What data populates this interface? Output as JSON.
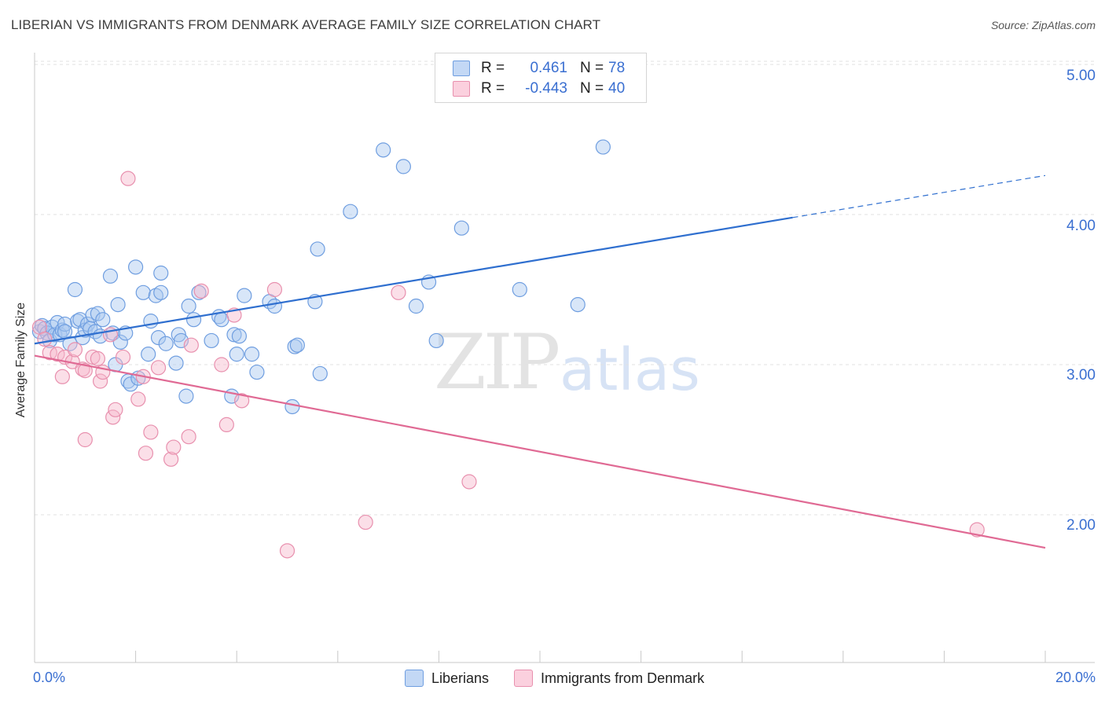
{
  "title": "LIBERIAN VS IMMIGRANTS FROM DENMARK AVERAGE FAMILY SIZE CORRELATION CHART",
  "source": "Source: ZipAtlas.com",
  "watermark": {
    "zip": "ZIP",
    "atlas": "atlas"
  },
  "legend": {
    "rows": [
      {
        "r_label": "R =",
        "r_value": "0.461",
        "n_label": "N =",
        "n_value": "78",
        "color": "#a9c8f0"
      },
      {
        "r_label": "R =",
        "r_value": "-0.443",
        "n_label": "N =",
        "n_value": "40",
        "color": "#f6b8cc"
      }
    ]
  },
  "bottom_legend": {
    "series1": "Liberians",
    "series2": "Immigrants from Denmark"
  },
  "x_axis": {
    "min_label": "0.0%",
    "max_label": "20.0%"
  },
  "y_axis": {
    "label": "Average Family Size",
    "ticks": [
      "5.00",
      "4.00",
      "3.00",
      "2.00"
    ]
  },
  "colors": {
    "blue_fill": "#a9c8f0",
    "blue_stroke": "#6f9ee0",
    "blue_line": "#2f6fcf",
    "pink_fill": "#f6b8cc",
    "pink_stroke": "#e890ae",
    "pink_line": "#e06a94",
    "grid": "#e2e2e2"
  },
  "chart_data": {
    "type": "scatter",
    "xlabel": "",
    "ylabel": "Average Family Size",
    "xlim": [
      0,
      20
    ],
    "ylim": [
      1.1,
      5.3
    ],
    "y_ticks": [
      2.0,
      3.0,
      4.0,
      5.0
    ],
    "grid": true,
    "series": [
      {
        "name": "Liberians",
        "trend": {
          "x": [
            0,
            15
          ],
          "y": [
            3.14,
            3.98
          ],
          "dashed_to": [
            20,
            4.26
          ]
        },
        "points": [
          [
            0.1,
            3.22
          ],
          [
            0.15,
            3.26
          ],
          [
            0.2,
            3.24
          ],
          [
            0.25,
            3.21
          ],
          [
            0.3,
            3.16
          ],
          [
            0.35,
            3.25
          ],
          [
            0.4,
            3.2
          ],
          [
            0.45,
            3.28
          ],
          [
            0.5,
            3.2
          ],
          [
            0.55,
            3.23
          ],
          [
            0.6,
            3.27
          ],
          [
            0.7,
            3.14
          ],
          [
            0.8,
            3.5
          ],
          [
            0.85,
            3.29
          ],
          [
            0.9,
            3.3
          ],
          [
            0.95,
            3.18
          ],
          [
            1.0,
            3.23
          ],
          [
            1.05,
            3.27
          ],
          [
            1.1,
            3.24
          ],
          [
            1.15,
            3.33
          ],
          [
            1.2,
            3.22
          ],
          [
            1.25,
            3.34
          ],
          [
            1.3,
            3.19
          ],
          [
            1.35,
            3.3
          ],
          [
            1.5,
            3.59
          ],
          [
            1.55,
            3.21
          ],
          [
            1.6,
            3.0
          ],
          [
            1.65,
            3.4
          ],
          [
            1.7,
            3.15
          ],
          [
            1.8,
            3.21
          ],
          [
            1.85,
            2.89
          ],
          [
            1.9,
            2.87
          ],
          [
            2.0,
            3.65
          ],
          [
            2.05,
            2.91
          ],
          [
            2.15,
            3.48
          ],
          [
            2.25,
            3.07
          ],
          [
            2.3,
            3.29
          ],
          [
            2.4,
            3.46
          ],
          [
            2.45,
            3.18
          ],
          [
            2.5,
            3.48
          ],
          [
            2.5,
            3.61
          ],
          [
            2.6,
            3.14
          ],
          [
            2.8,
            3.01
          ],
          [
            2.85,
            3.2
          ],
          [
            2.9,
            3.16
          ],
          [
            3.0,
            2.79
          ],
          [
            3.05,
            3.39
          ],
          [
            3.15,
            3.3
          ],
          [
            3.25,
            3.48
          ],
          [
            3.5,
            3.16
          ],
          [
            3.65,
            3.32
          ],
          [
            3.7,
            3.3
          ],
          [
            3.9,
            2.79
          ],
          [
            3.95,
            3.2
          ],
          [
            4.0,
            3.07
          ],
          [
            4.05,
            3.19
          ],
          [
            4.15,
            3.46
          ],
          [
            4.3,
            3.07
          ],
          [
            4.4,
            2.95
          ],
          [
            4.65,
            3.42
          ],
          [
            4.75,
            3.39
          ],
          [
            5.15,
            3.12
          ],
          [
            5.2,
            3.13
          ],
          [
            5.1,
            2.72
          ],
          [
            5.55,
            3.42
          ],
          [
            5.6,
            3.77
          ],
          [
            5.65,
            2.94
          ],
          [
            6.25,
            4.02
          ],
          [
            6.9,
            4.43
          ],
          [
            7.3,
            4.32
          ],
          [
            7.55,
            3.39
          ],
          [
            7.8,
            3.55
          ],
          [
            7.95,
            3.16
          ],
          [
            8.45,
            3.91
          ],
          [
            9.6,
            3.5
          ],
          [
            10.75,
            3.4
          ],
          [
            11.25,
            4.45
          ],
          [
            0.6,
            3.22
          ]
        ]
      },
      {
        "name": "Immigrants from Denmark",
        "trend": {
          "x": [
            0,
            20
          ],
          "y": [
            3.06,
            1.78
          ]
        },
        "points": [
          [
            0.1,
            3.25
          ],
          [
            0.2,
            3.17
          ],
          [
            0.3,
            3.08
          ],
          [
            0.45,
            3.07
          ],
          [
            0.55,
            2.92
          ],
          [
            0.6,
            3.05
          ],
          [
            0.75,
            3.02
          ],
          [
            0.8,
            3.1
          ],
          [
            0.95,
            2.97
          ],
          [
            1.0,
            2.96
          ],
          [
            1.0,
            2.5
          ],
          [
            1.15,
            3.05
          ],
          [
            1.25,
            3.04
          ],
          [
            1.3,
            2.89
          ],
          [
            1.35,
            2.95
          ],
          [
            1.5,
            3.2
          ],
          [
            1.55,
            2.65
          ],
          [
            1.6,
            2.7
          ],
          [
            1.75,
            3.05
          ],
          [
            1.85,
            4.24
          ],
          [
            2.05,
            2.77
          ],
          [
            2.15,
            2.92
          ],
          [
            2.2,
            2.41
          ],
          [
            2.3,
            2.55
          ],
          [
            2.45,
            2.98
          ],
          [
            2.7,
            2.37
          ],
          [
            2.75,
            2.45
          ],
          [
            3.05,
            2.52
          ],
          [
            3.1,
            3.13
          ],
          [
            3.3,
            3.49
          ],
          [
            3.7,
            3.0
          ],
          [
            3.8,
            2.6
          ],
          [
            3.95,
            3.33
          ],
          [
            4.1,
            2.76
          ],
          [
            4.75,
            3.5
          ],
          [
            5.0,
            1.76
          ],
          [
            6.55,
            1.95
          ],
          [
            7.2,
            3.48
          ],
          [
            8.6,
            2.22
          ],
          [
            18.65,
            1.9
          ]
        ]
      }
    ]
  }
}
